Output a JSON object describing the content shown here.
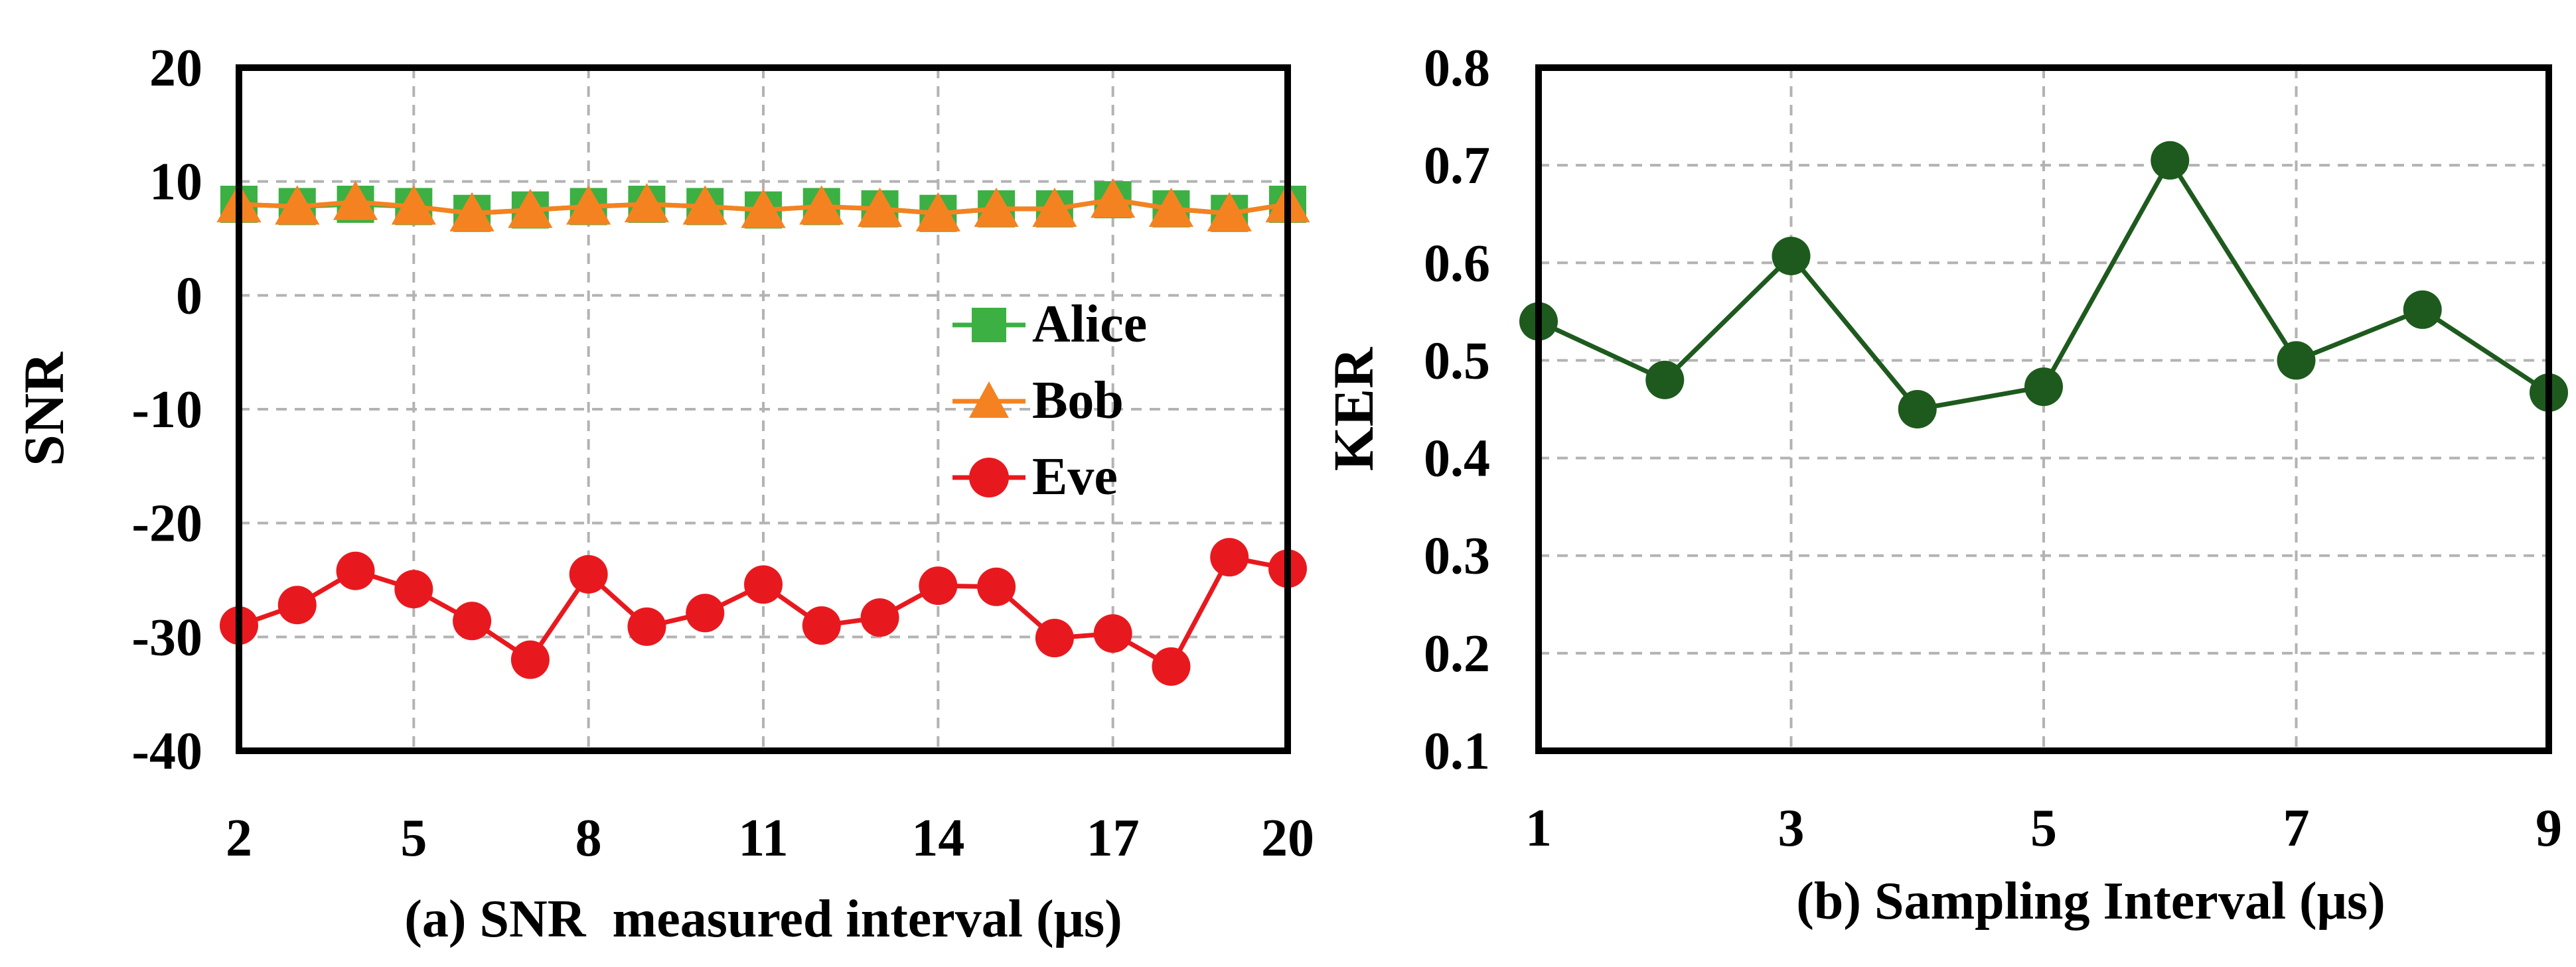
{
  "chart_data": [
    {
      "type": "line",
      "caption": "(a) SNR  measured interval (μs)",
      "ylabel": "SNR",
      "xlim": [
        2,
        20
      ],
      "ylim": [
        -40,
        20
      ],
      "xticks": [
        2,
        5,
        8,
        11,
        14,
        17,
        20
      ],
      "yticks": [
        -40,
        -30,
        -20,
        -10,
        0,
        10,
        20
      ],
      "x_tick_labels": [
        "2",
        "5",
        "8",
        "11",
        "14",
        "17",
        "20"
      ],
      "y_tick_labels": [
        "-40",
        "-30",
        "-20",
        "-10",
        "0",
        "10",
        "20"
      ],
      "grid": true,
      "legend_position": "right",
      "x": [
        2,
        3,
        4,
        5,
        6,
        7,
        8,
        9,
        10,
        11,
        12,
        13,
        14,
        15,
        16,
        17,
        18,
        19,
        20
      ],
      "series": [
        {
          "name": "Alice",
          "color": "#3cb043",
          "marker": "square",
          "values": [
            8,
            7.8,
            8,
            7.8,
            7.2,
            7.5,
            7.8,
            8,
            7.8,
            7.5,
            7.8,
            7.6,
            7.2,
            7.6,
            7.6,
            8.4,
            7.6,
            7.2,
            8
          ]
        },
        {
          "name": "Bob",
          "color": "#f58220",
          "marker": "triangle",
          "values": [
            8,
            7.8,
            8.2,
            7.8,
            7.2,
            7.5,
            7.8,
            8,
            7.8,
            7.5,
            7.8,
            7.6,
            7.2,
            7.6,
            7.6,
            8.4,
            7.6,
            7.2,
            8
          ]
        },
        {
          "name": "Eve",
          "color": "#e8191e",
          "marker": "circle",
          "values": [
            -29,
            -27.2,
            -24.2,
            -25.8,
            -28.6,
            -32,
            -24.5,
            -29.1,
            -27.9,
            -25.4,
            -29,
            -28.3,
            -25.5,
            -25.6,
            -30.1,
            -29.7,
            -32.6,
            -23,
            -24
          ]
        }
      ]
    },
    {
      "type": "line",
      "caption": "(b) Sampling Interval (μs)",
      "ylabel": "KER",
      "xlim": [
        1,
        9
      ],
      "ylim": [
        0.1,
        0.8
      ],
      "xticks": [
        1,
        3,
        5,
        7,
        9
      ],
      "yticks": [
        0.1,
        0.2,
        0.3,
        0.4,
        0.5,
        0.6,
        0.7,
        0.8
      ],
      "x_tick_labels": [
        "1",
        "3",
        "5",
        "7",
        "9"
      ],
      "y_tick_labels": [
        "0.1",
        "0.2",
        "0.3",
        "0.4",
        "0.5",
        "0.6",
        "0.7",
        "0.8"
      ],
      "grid": true,
      "x": [
        1,
        2,
        3,
        4,
        5,
        6,
        7,
        8,
        9
      ],
      "series": [
        {
          "color": "#1e5a1e",
          "marker": "circle",
          "values": [
            0.54,
            0.48,
            0.607,
            0.45,
            0.473,
            0.705,
            0.5,
            0.552,
            0.467
          ]
        }
      ]
    }
  ]
}
